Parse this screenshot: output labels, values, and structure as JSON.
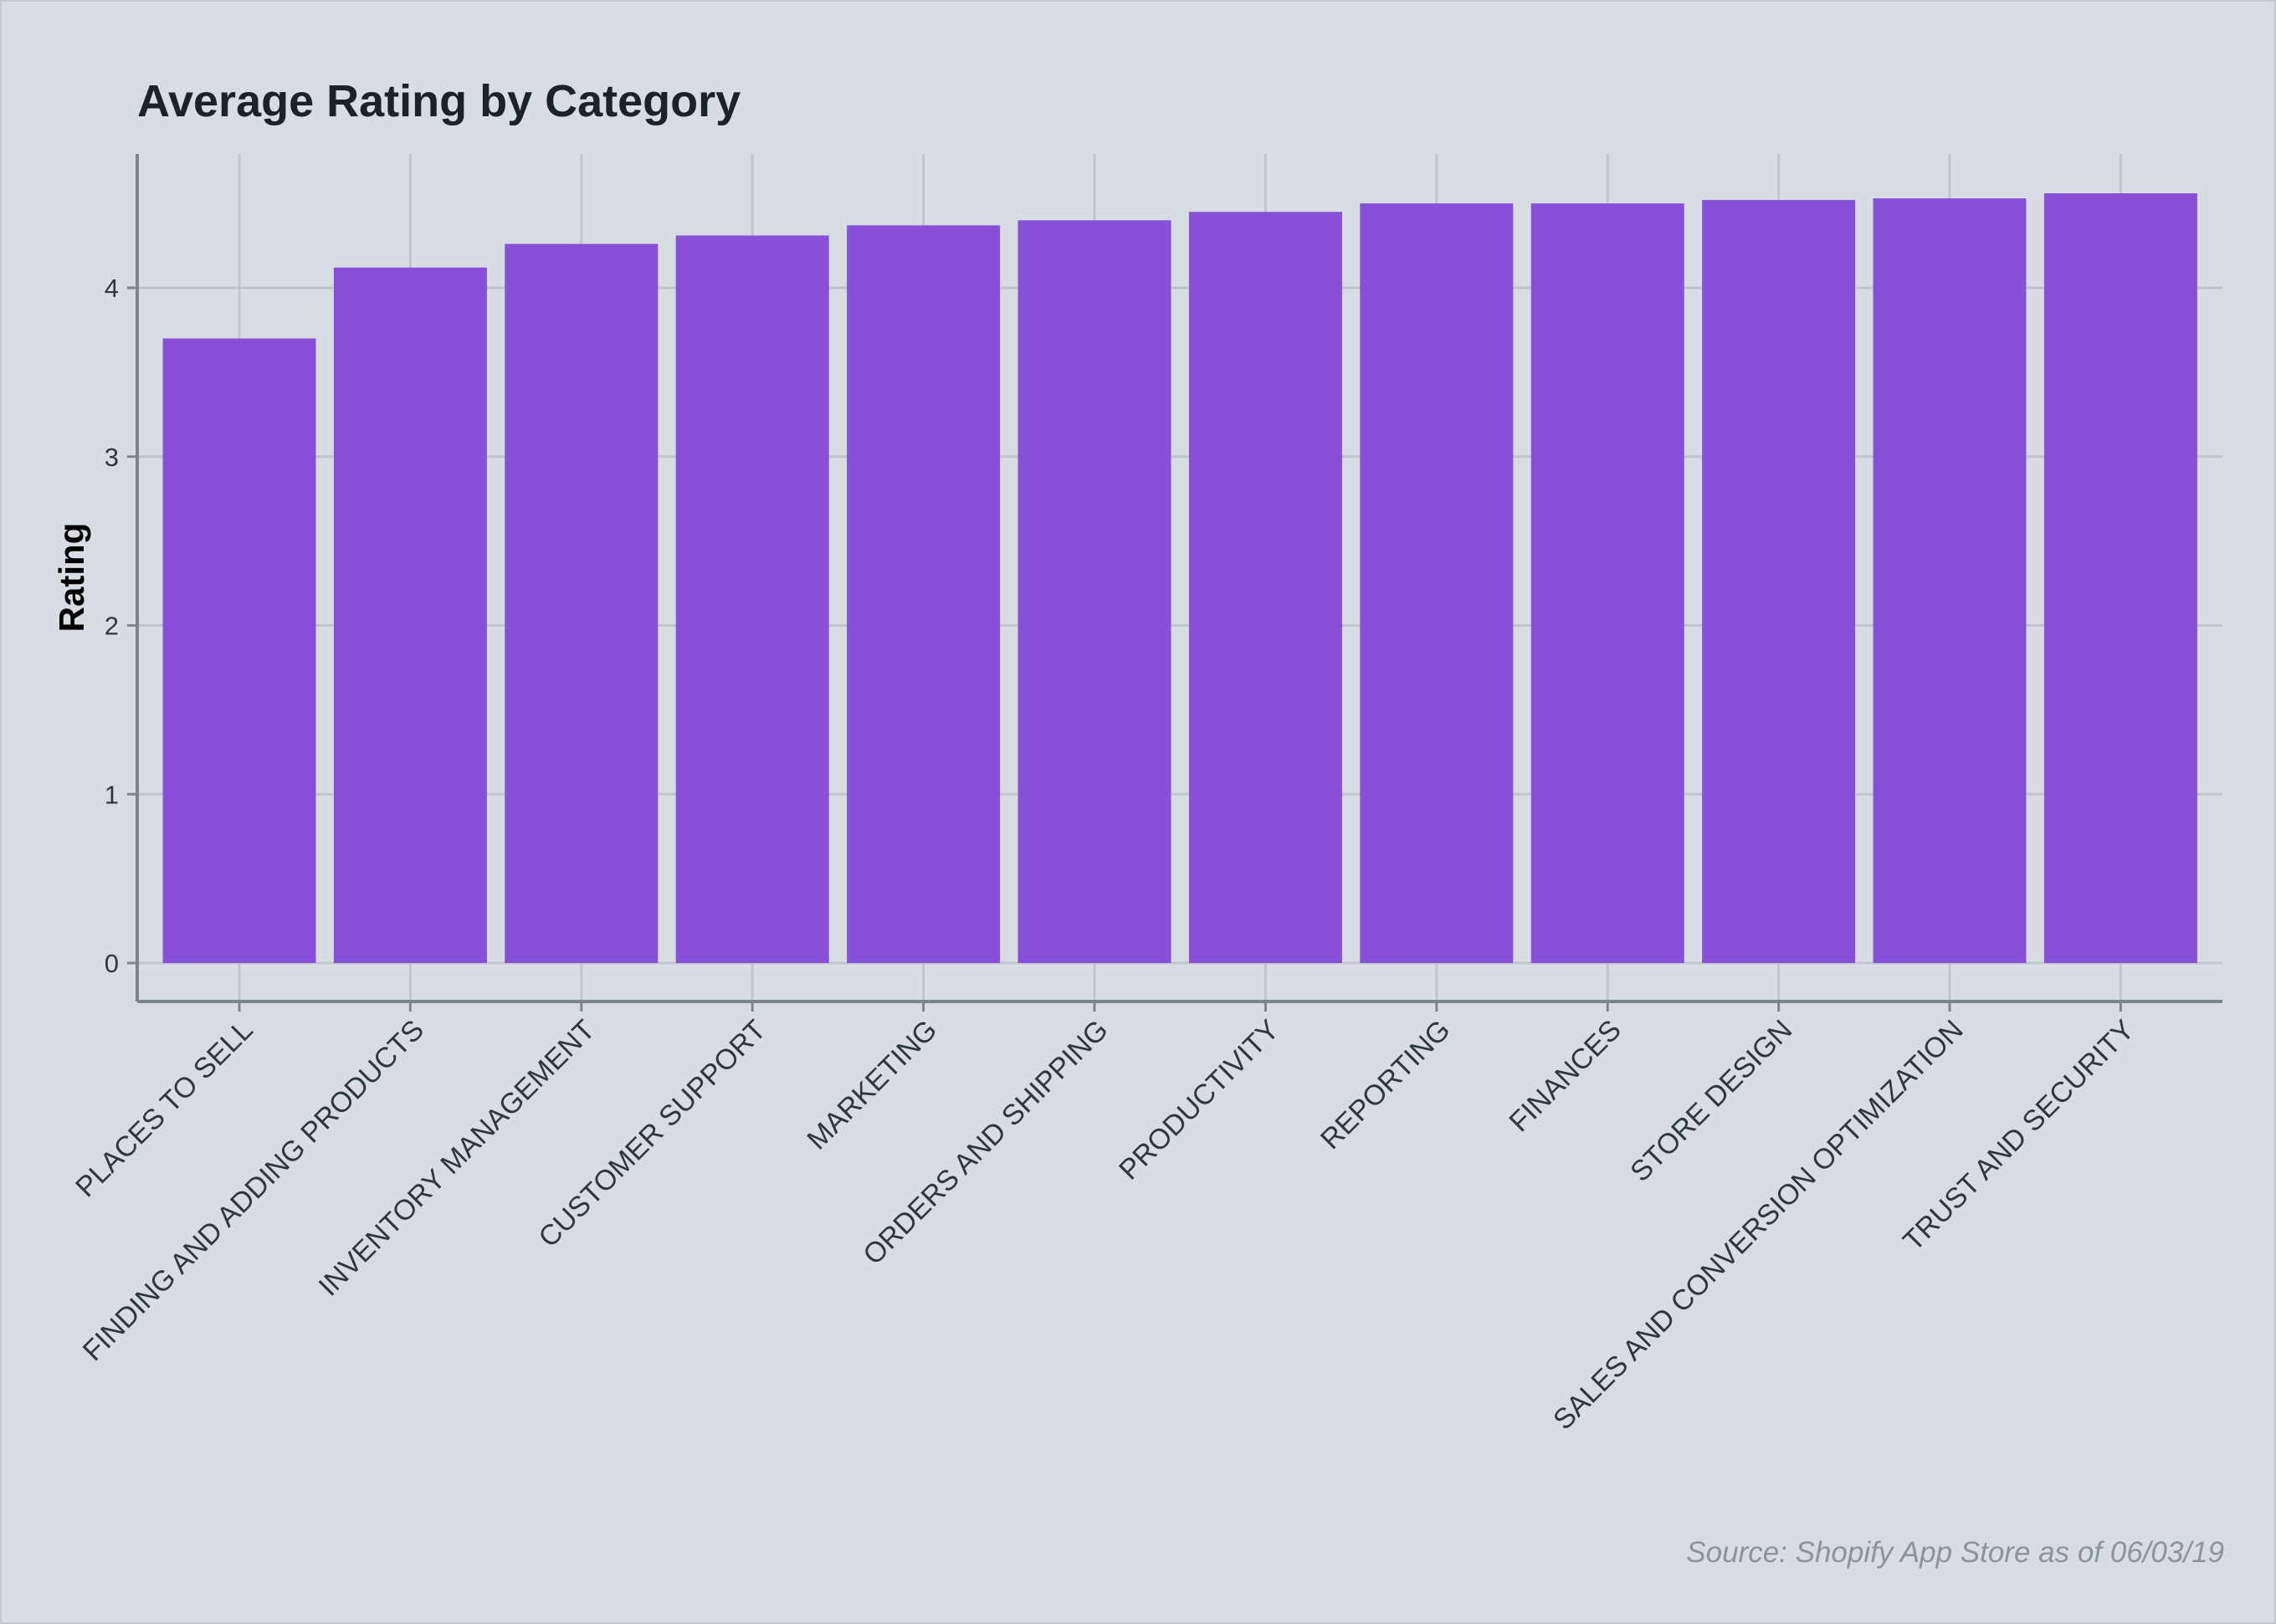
{
  "chart_data": {
    "type": "bar",
    "title": "Average Rating by Category",
    "xlabel": "",
    "ylabel": "Rating",
    "ylim": [
      0,
      4.8
    ],
    "yticks": [
      0,
      1,
      2,
      3,
      4
    ],
    "grid": true,
    "legend": "none",
    "bar_color": "#8850d8",
    "categories": [
      "PLACES TO SELL",
      "FINDING AND ADDING PRODUCTS",
      "INVENTORY MANAGEMENT",
      "CUSTOMER SUPPORT",
      "MARKETING",
      "ORDERS AND SHIPPING",
      "PRODUCTIVITY",
      "REPORTING",
      "FINANCES",
      "STORE DESIGN",
      "SALES AND CONVERSION OPTIMIZATION",
      "TRUST AND SECURITY"
    ],
    "values": [
      3.7,
      4.12,
      4.26,
      4.31,
      4.37,
      4.4,
      4.45,
      4.5,
      4.5,
      4.52,
      4.53,
      4.56
    ],
    "source": "Source: Shopify App Store as of 06/03/19"
  },
  "colors": {
    "background": "#d8dce3",
    "grid": "#c0c5cd",
    "axis": "#7d848d",
    "bar": "#8850d8"
  }
}
